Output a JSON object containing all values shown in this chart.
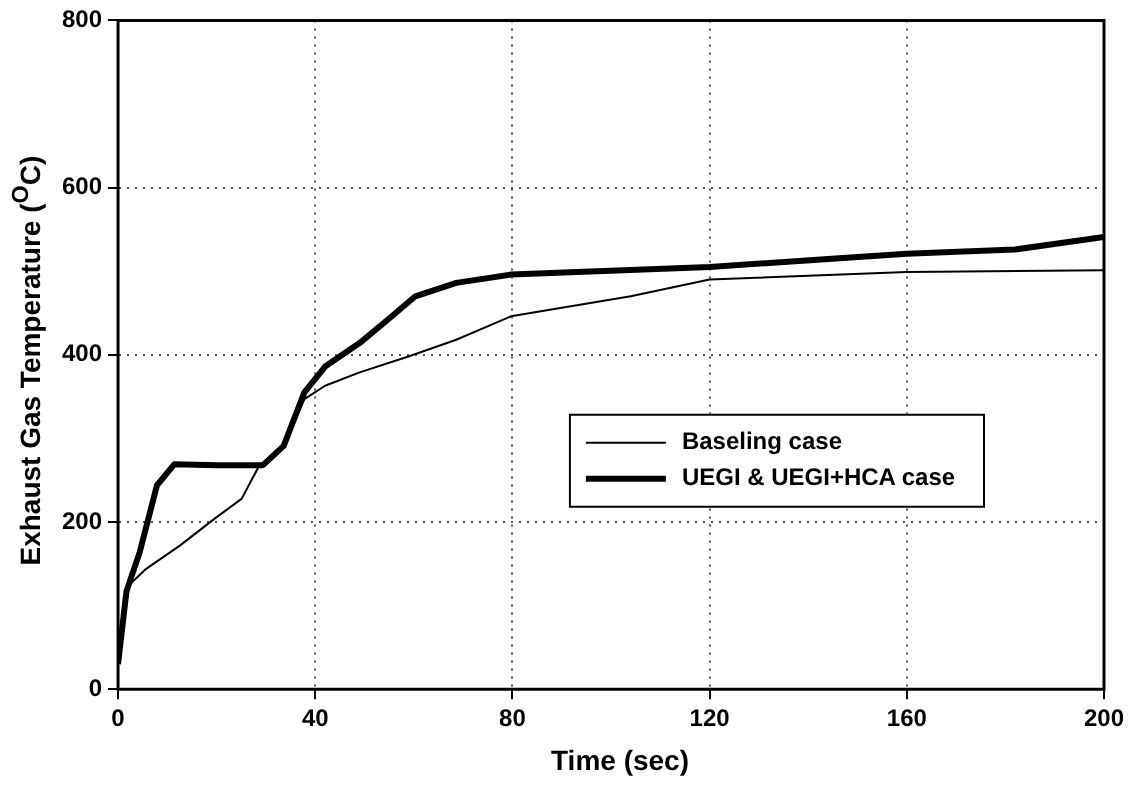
{
  "chart_data": {
    "type": "line",
    "xlabel": "Time (sec)",
    "ylabel": "Exhaust Gas Temperature ($^{O}$C)",
    "xlim": [
      0,
      200
    ],
    "xticks": [
      0,
      40,
      80,
      120,
      160,
      200
    ],
    "ylim": [
      0,
      800
    ],
    "yticks": [
      0,
      200,
      400,
      600,
      800
    ],
    "grid": true,
    "legend": "right",
    "marker": "none",
    "series": [
      {
        "name": "Baseling case",
        "color": "#000000",
        "x": [
          0,
          2.3,
          5.7,
          12.6,
          19.6,
          25.1,
          28.6,
          33.6,
          37.8,
          42,
          49,
          58.9,
          68.6,
          79.7,
          104,
          120,
          160,
          200
        ],
        "values": [
          40,
          125,
          144,
          172,
          204,
          228,
          267,
          291,
          347,
          363,
          379,
          398,
          418,
          446,
          470,
          490,
          499,
          501
        ]
      },
      {
        "name": "UEGI & UEGI+HCA case",
        "color": "#000000",
        "x": [
          0,
          1.7,
          4.4,
          7.9,
          11.4,
          20,
          29.4,
          33.6,
          37.8,
          42,
          49,
          54.7,
          60.3,
          68.6,
          79.7,
          120,
          160,
          182,
          200
        ],
        "values": [
          30,
          117,
          164,
          244,
          269,
          268,
          268,
          291,
          355,
          386,
          414,
          442,
          470,
          486,
          496,
          505,
          521,
          526,
          541
        ]
      }
    ]
  }
}
